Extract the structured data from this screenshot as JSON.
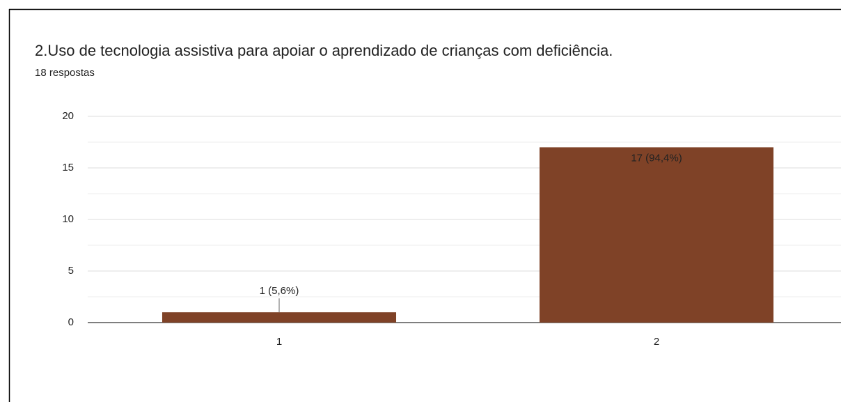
{
  "chart_data": {
    "type": "bar",
    "title": "2.Uso de tecnologia assistiva para apoiar o aprendizado de crianças com deficiência.",
    "subtitle": "18 respostas",
    "categories": [
      "1",
      "2"
    ],
    "values": [
      1,
      17
    ],
    "value_labels": [
      "1 (5,6%)",
      "17 (94,4%)"
    ],
    "color": "#7f4227",
    "ylim": [
      0,
      20
    ],
    "yticks": [
      0,
      5,
      10,
      15,
      20
    ],
    "grid": true
  }
}
